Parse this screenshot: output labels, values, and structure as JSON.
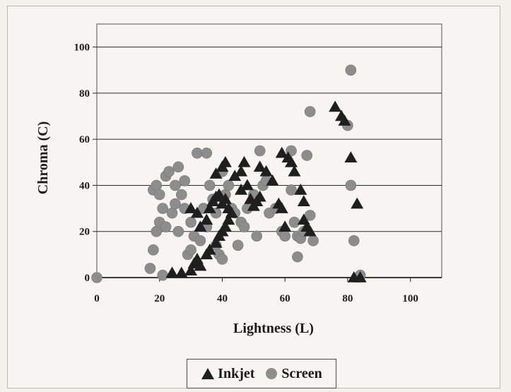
{
  "chart_data": {
    "type": "scatter",
    "xlabel": "Lightness (L)",
    "ylabel": "Chroma (C)",
    "xlim": [
      0,
      110
    ],
    "ylim": [
      0,
      110
    ],
    "x_ticks": [
      "0",
      "20",
      "40",
      "60",
      "80",
      "100"
    ],
    "y_ticks": [
      "0",
      "20",
      "40",
      "60",
      "80",
      "100"
    ],
    "grid": "horizontal",
    "legend": "bottom-center",
    "series": [
      {
        "name": "Inkjet",
        "marker": "triangle",
        "color": "#1f1f1f",
        "points": [
          [
            24,
            2
          ],
          [
            27,
            2
          ],
          [
            30,
            3
          ],
          [
            31,
            6
          ],
          [
            32,
            8
          ],
          [
            33,
            5
          ],
          [
            35,
            10
          ],
          [
            36,
            12
          ],
          [
            38,
            15
          ],
          [
            39,
            18
          ],
          [
            40,
            20
          ],
          [
            41,
            22
          ],
          [
            42,
            25
          ],
          [
            30,
            30
          ],
          [
            32,
            28
          ],
          [
            33,
            22
          ],
          [
            35,
            25
          ],
          [
            36,
            30
          ],
          [
            37,
            33
          ],
          [
            38,
            35
          ],
          [
            39,
            36
          ],
          [
            40,
            32
          ],
          [
            41,
            34
          ],
          [
            42,
            30
          ],
          [
            43,
            28
          ],
          [
            38,
            45
          ],
          [
            40,
            48
          ],
          [
            41,
            50
          ],
          [
            44,
            44
          ],
          [
            46,
            46
          ],
          [
            47,
            50
          ],
          [
            46,
            38
          ],
          [
            48,
            40
          ],
          [
            49,
            34
          ],
          [
            50,
            31
          ],
          [
            51,
            33
          ],
          [
            52,
            35
          ],
          [
            52,
            48
          ],
          [
            54,
            46
          ],
          [
            56,
            42
          ],
          [
            58,
            32
          ],
          [
            59,
            30
          ],
          [
            60,
            22
          ],
          [
            59,
            54
          ],
          [
            61,
            52
          ],
          [
            62,
            50
          ],
          [
            63,
            46
          ],
          [
            65,
            38
          ],
          [
            66,
            33
          ],
          [
            66,
            25
          ],
          [
            67,
            22
          ],
          [
            68,
            20
          ],
          [
            76,
            74
          ],
          [
            78,
            70
          ],
          [
            79,
            68
          ],
          [
            81,
            52
          ],
          [
            82,
            0
          ],
          [
            83,
            32
          ],
          [
            84,
            0
          ]
        ]
      },
      {
        "name": "Screen",
        "marker": "circle",
        "color": "#8d8d8d",
        "points": [
          [
            0,
            0
          ],
          [
            17,
            4
          ],
          [
            18,
            12
          ],
          [
            19,
            20
          ],
          [
            20,
            24
          ],
          [
            21,
            1
          ],
          [
            18,
            38
          ],
          [
            19,
            40
          ],
          [
            20,
            36
          ],
          [
            21,
            30
          ],
          [
            22,
            22
          ],
          [
            22,
            44
          ],
          [
            23,
            46
          ],
          [
            24,
            28
          ],
          [
            25,
            32
          ],
          [
            25,
            40
          ],
          [
            26,
            48
          ],
          [
            26,
            20
          ],
          [
            27,
            36
          ],
          [
            28,
            30
          ],
          [
            28,
            42
          ],
          [
            29,
            10
          ],
          [
            30,
            24
          ],
          [
            30,
            12
          ],
          [
            31,
            18
          ],
          [
            32,
            54
          ],
          [
            33,
            16
          ],
          [
            34,
            30
          ],
          [
            35,
            54
          ],
          [
            35,
            22
          ],
          [
            36,
            40
          ],
          [
            37,
            34
          ],
          [
            38,
            14
          ],
          [
            38,
            28
          ],
          [
            39,
            10
          ],
          [
            40,
            8
          ],
          [
            40,
            46
          ],
          [
            41,
            36
          ],
          [
            42,
            40
          ],
          [
            43,
            30
          ],
          [
            44,
            28
          ],
          [
            45,
            14
          ],
          [
            46,
            24
          ],
          [
            47,
            22
          ],
          [
            48,
            30
          ],
          [
            50,
            36
          ],
          [
            51,
            18
          ],
          [
            52,
            55
          ],
          [
            53,
            40
          ],
          [
            54,
            42
          ],
          [
            55,
            28
          ],
          [
            57,
            30
          ],
          [
            59,
            20
          ],
          [
            60,
            18
          ],
          [
            62,
            55
          ],
          [
            62,
            38
          ],
          [
            63,
            24
          ],
          [
            64,
            18
          ],
          [
            64,
            9
          ],
          [
            65,
            17
          ],
          [
            66,
            20
          ],
          [
            67,
            53
          ],
          [
            68,
            72
          ],
          [
            68,
            27
          ],
          [
            69,
            16
          ],
          [
            80,
            66
          ],
          [
            81,
            90
          ],
          [
            81,
            40
          ],
          [
            82,
            16
          ],
          [
            84,
            1
          ]
        ]
      }
    ]
  }
}
